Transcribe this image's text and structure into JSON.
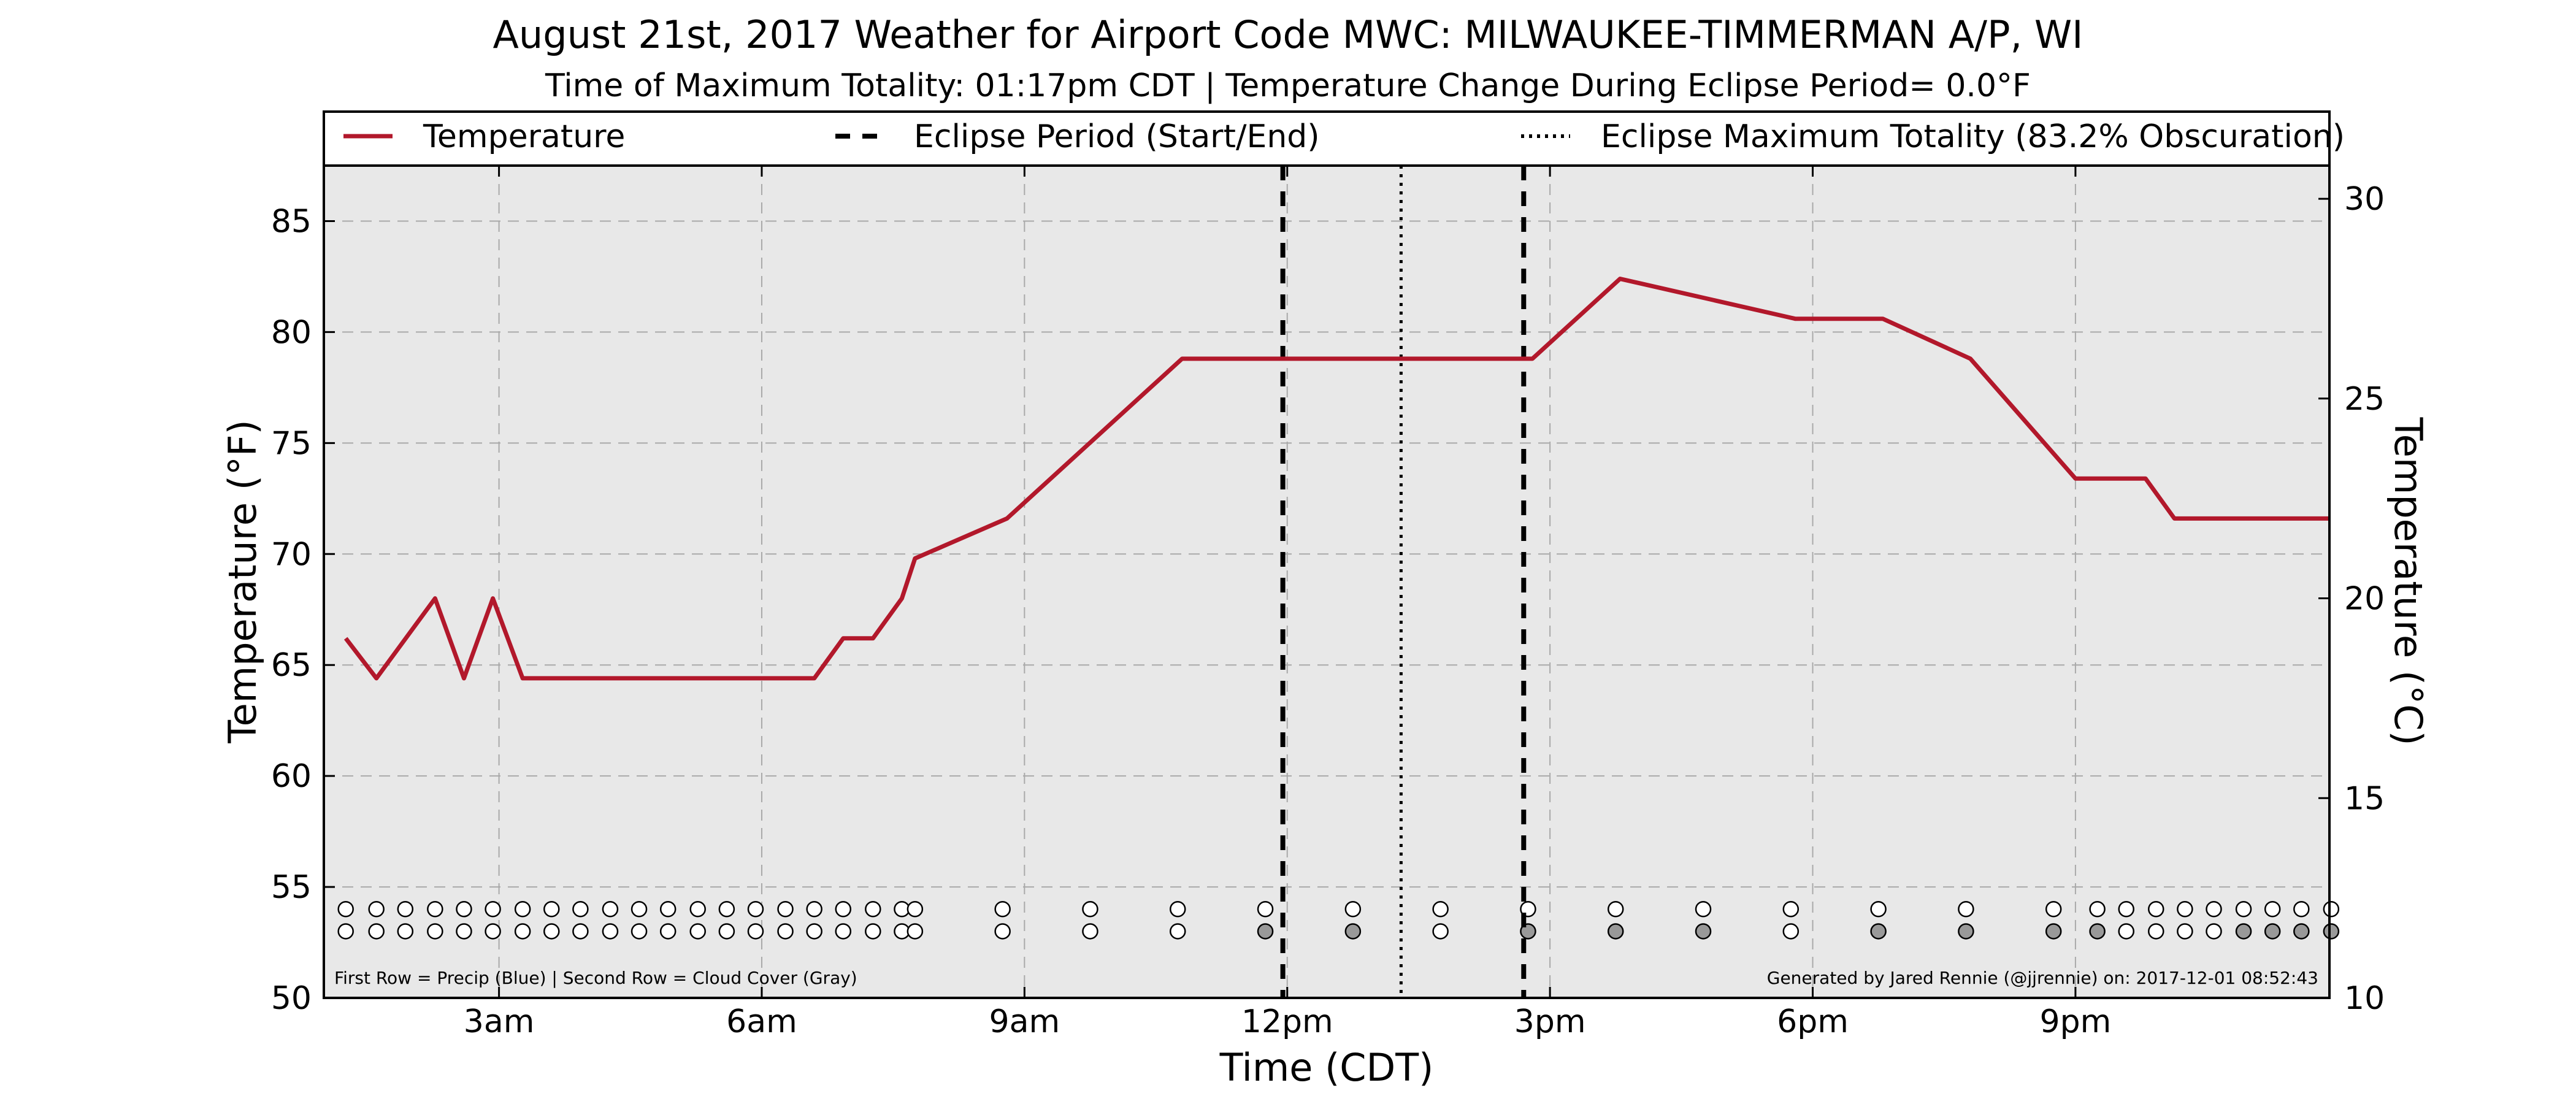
{
  "chart_data": {
    "type": "line",
    "title": "August 21st, 2017 Weather for Airport Code MWC: MILWAUKEE-TIMMERMAN A/P, WI",
    "subtitle": "Time of Maximum Totality: 01:17pm CDT | Temperature Change During Eclipse Period= 0.0°F",
    "xlabel": "Time (CDT)",
    "ylabel": "Temperature (°F)",
    "y2label": "Temperature (°C)",
    "xlim": [
      1.0,
      23.9
    ],
    "ylim": [
      50,
      87.5
    ],
    "y2lim": [
      10,
      30.83
    ],
    "grid": true,
    "legend_position": "top",
    "x_ticks": [
      {
        "value": 3,
        "label": "3am"
      },
      {
        "value": 6,
        "label": "6am"
      },
      {
        "value": 9,
        "label": "9am"
      },
      {
        "value": 12,
        "label": "12pm"
      },
      {
        "value": 15,
        "label": "3pm"
      },
      {
        "value": 18,
        "label": "6pm"
      },
      {
        "value": 21,
        "label": "9pm"
      }
    ],
    "y_ticks": [
      50,
      55,
      60,
      65,
      70,
      75,
      80,
      85
    ],
    "y2_ticks": [
      10,
      15,
      20,
      25,
      30
    ],
    "legend": [
      {
        "label": "Temperature",
        "style": "solid"
      },
      {
        "label": "Eclipse Period (Start/End)",
        "style": "dashed"
      },
      {
        "label": "Eclipse Maximum Totality (83.2% Obscuration)",
        "style": "dotted"
      }
    ],
    "series": [
      {
        "name": "Temperature",
        "color": "#b2182b",
        "x": [
          1.25,
          1.6,
          2.27,
          2.6,
          2.93,
          3.27,
          6.6,
          6.93,
          7.27,
          7.6,
          7.75,
          8.8,
          10.8,
          14.8,
          15.8,
          17.8,
          18.8,
          19.8,
          21.0,
          21.8,
          22.13,
          23.9
        ],
        "y": [
          66.2,
          64.4,
          68.0,
          64.4,
          68.0,
          64.4,
          64.4,
          66.2,
          66.2,
          68.0,
          69.8,
          71.6,
          78.8,
          78.8,
          82.4,
          80.6,
          80.6,
          78.8,
          73.4,
          73.4,
          71.6,
          71.6
        ]
      }
    ],
    "eclipse_start": 11.95,
    "eclipse_end": 14.7,
    "eclipse_max": 13.3,
    "obs_times": [
      1.25,
      1.6,
      1.93,
      2.27,
      2.6,
      2.93,
      3.27,
      3.6,
      3.93,
      4.27,
      4.6,
      4.93,
      5.27,
      5.6,
      5.93,
      6.27,
      6.6,
      6.93,
      7.27,
      7.6,
      7.75,
      8.75,
      9.75,
      10.75,
      11.75,
      12.75,
      13.75,
      14.75,
      15.75,
      16.75,
      17.75,
      18.75,
      19.75,
      20.75,
      21.25,
      21.58,
      21.92,
      22.25,
      22.58,
      22.92,
      23.25,
      23.58,
      23.92
    ],
    "precip_row_colors": [
      "#ffffff",
      "#ffffff",
      "#ffffff",
      "#ffffff",
      "#ffffff",
      "#ffffff",
      "#ffffff",
      "#ffffff",
      "#ffffff",
      "#ffffff",
      "#ffffff",
      "#ffffff",
      "#ffffff",
      "#ffffff",
      "#ffffff",
      "#ffffff",
      "#ffffff",
      "#ffffff",
      "#ffffff",
      "#ffffff",
      "#ffffff",
      "#ffffff",
      "#ffffff",
      "#ffffff",
      "#ffffff",
      "#ffffff",
      "#ffffff",
      "#ffffff",
      "#ffffff",
      "#ffffff",
      "#ffffff",
      "#ffffff",
      "#ffffff",
      "#ffffff",
      "#ffffff",
      "#ffffff",
      "#ffffff",
      "#ffffff",
      "#ffffff",
      "#ffffff",
      "#ffffff",
      "#ffffff",
      "#ffffff"
    ],
    "cloud_row_colors": [
      "#ffffff",
      "#ffffff",
      "#ffffff",
      "#ffffff",
      "#ffffff",
      "#ffffff",
      "#ffffff",
      "#ffffff",
      "#ffffff",
      "#ffffff",
      "#ffffff",
      "#ffffff",
      "#ffffff",
      "#ffffff",
      "#ffffff",
      "#ffffff",
      "#ffffff",
      "#ffffff",
      "#ffffff",
      "#ffffff",
      "#ffffff",
      "#ffffff",
      "#ffffff",
      "#ffffff",
      "#999999",
      "#999999",
      "#ffffff",
      "#999999",
      "#999999",
      "#999999",
      "#ffffff",
      "#999999",
      "#999999",
      "#999999",
      "#999999",
      "#ffffff",
      "#ffffff",
      "#ffffff",
      "#ffffff",
      "#999999",
      "#999999",
      "#999999",
      "#999999"
    ],
    "precip_row_value": 54.0,
    "cloud_row_value": 53.0,
    "footnote_left": "First Row = Precip (Blue) | Second Row = Cloud Cover (Gray)",
    "footnote_right": "Generated by Jared Rennie (@jjrennie) on: 2017-12-01 08:52:43",
    "colors": {
      "plot_background": "#e8e8e8",
      "temperature_line": "#b2182b",
      "grid": "#a9a9a9"
    }
  }
}
